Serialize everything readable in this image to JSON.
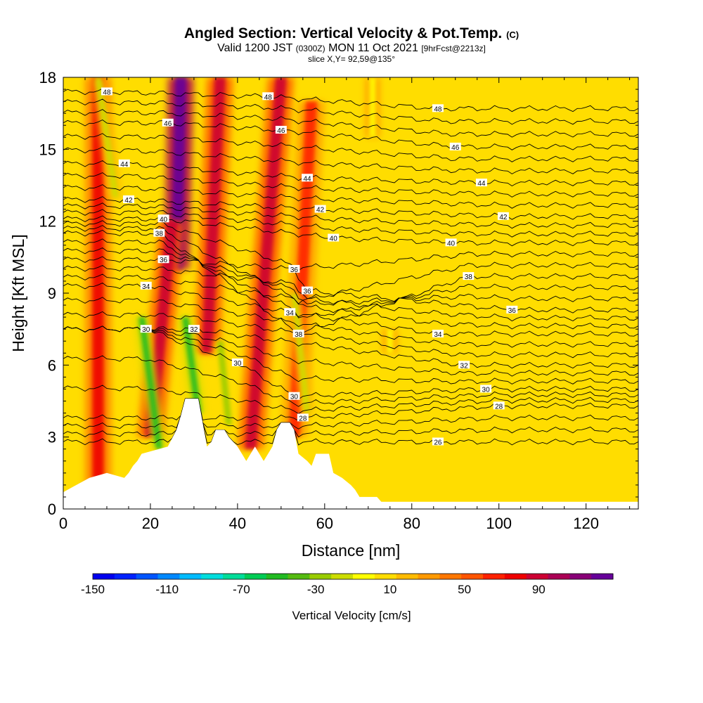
{
  "title": {
    "main": "Angled Section: Vertical Velocity & Pot.Temp.",
    "unit_note": "(C)",
    "valid_prefix": "Valid 1200 JST",
    "zulu": "(0300Z)",
    "valid_date": "MON 11 Oct 2021",
    "forecast": "[9hrFcst@2213z]",
    "slice": "slice X,Y= 92,59@135°"
  },
  "colors": {
    "background_field": "#ffdd00",
    "contour_line": "#000000",
    "terrain": "#ffffff"
  },
  "chart_data": {
    "type": "heatmap",
    "xlabel": "Distance [nm]",
    "ylabel": "Height [Kft MSL]",
    "xlim": [
      0,
      132
    ],
    "ylim": [
      0,
      18
    ],
    "x_ticks": [
      0,
      20,
      40,
      60,
      80,
      100,
      120
    ],
    "y_ticks": [
      0,
      3,
      6,
      9,
      12,
      15,
      18
    ],
    "colorbar": {
      "label": "Vertical Velocity [cm/s]",
      "range": [
        -150,
        130
      ],
      "step": 10,
      "tick_labels": [
        "-150",
        "-110",
        "-70",
        "-30",
        "10",
        "50",
        "90"
      ],
      "colors": [
        "#0000ee",
        "#0022ff",
        "#0055ff",
        "#0088ff",
        "#00bbff",
        "#00dddd",
        "#00dd99",
        "#00cc55",
        "#22bb22",
        "#55bb11",
        "#99cc00",
        "#ccdd00",
        "#ffff00",
        "#ffdd00",
        "#ffbb00",
        "#ff9900",
        "#ff7700",
        "#ff5500",
        "#ff2200",
        "#ee0000",
        "#cc0033",
        "#aa0055",
        "#880077",
        "#660099"
      ]
    },
    "potential_temperature_contours": [
      {
        "label": "26",
        "value": 26,
        "label_positions": [
          {
            "x": 86,
            "y": 2.8
          }
        ]
      },
      {
        "label": "28",
        "value": 28,
        "label_positions": [
          {
            "x": 55,
            "y": 3.8
          },
          {
            "x": 100,
            "y": 4.3
          }
        ]
      },
      {
        "label": "30",
        "value": 30,
        "label_positions": [
          {
            "x": 19,
            "y": 7.5
          },
          {
            "x": 40,
            "y": 6.1
          },
          {
            "x": 53,
            "y": 4.7
          },
          {
            "x": 97,
            "y": 5
          }
        ]
      },
      {
        "label": "32",
        "value": 32,
        "label_positions": [
          {
            "x": 30,
            "y": 7.5
          },
          {
            "x": 92,
            "y": 6
          }
        ]
      },
      {
        "label": "34",
        "value": 34,
        "label_positions": [
          {
            "x": 19,
            "y": 9.3
          },
          {
            "x": 52,
            "y": 8.2
          },
          {
            "x": 86,
            "y": 7.3
          }
        ]
      },
      {
        "label": "36",
        "value": 36,
        "label_positions": [
          {
            "x": 23,
            "y": 10.4
          },
          {
            "x": 53,
            "y": 10
          },
          {
            "x": 56,
            "y": 9.1
          },
          {
            "x": 103,
            "y": 8.3
          }
        ]
      },
      {
        "label": "38",
        "value": 38,
        "label_positions": [
          {
            "x": 22,
            "y": 11.5
          },
          {
            "x": 54,
            "y": 7.3
          },
          {
            "x": 93,
            "y": 9.7
          }
        ]
      },
      {
        "label": "40",
        "value": 40,
        "label_positions": [
          {
            "x": 23,
            "y": 12.1
          },
          {
            "x": 62,
            "y": 11.3
          },
          {
            "x": 89,
            "y": 11.1
          }
        ]
      },
      {
        "label": "42",
        "value": 42,
        "label_positions": [
          {
            "x": 15,
            "y": 12.9
          },
          {
            "x": 59,
            "y": 12.5
          },
          {
            "x": 101,
            "y": 12.2
          }
        ]
      },
      {
        "label": "44",
        "value": 44,
        "label_positions": [
          {
            "x": 14,
            "y": 14.4
          },
          {
            "x": 56,
            "y": 13.8
          },
          {
            "x": 96,
            "y": 13.6
          }
        ]
      },
      {
        "label": "46",
        "value": 46,
        "label_positions": [
          {
            "x": 24,
            "y": 16.1
          },
          {
            "x": 50,
            "y": 15.8
          },
          {
            "x": 90,
            "y": 15.1
          }
        ]
      },
      {
        "label": "48",
        "value": 48,
        "label_positions": [
          {
            "x": 10,
            "y": 17.4
          },
          {
            "x": 47,
            "y": 17.2
          },
          {
            "x": 86,
            "y": 16.7
          }
        ]
      }
    ],
    "vertical_velocity_features": [
      {
        "kind": "updraft",
        "x_bottom": 26,
        "x_top": 27,
        "y_bottom": 10,
        "y_top": 18,
        "max": 90
      },
      {
        "kind": "updraft",
        "x_bottom": 33,
        "x_top": 36,
        "y_bottom": 6.5,
        "y_top": 18,
        "max": 50
      },
      {
        "kind": "updraft",
        "x_bottom": 43,
        "x_top": 50,
        "y_bottom": 2.5,
        "y_top": 18,
        "max": 50
      },
      {
        "kind": "updraft",
        "x_bottom": 20,
        "x_top": 25,
        "y_bottom": 3,
        "y_top": 12,
        "max": 50
      },
      {
        "kind": "updraft",
        "x_bottom": 8,
        "x_top": 8,
        "y_bottom": 0.5,
        "y_top": 18,
        "max": 40
      },
      {
        "kind": "updraft",
        "x_bottom": 53,
        "x_top": 57,
        "y_bottom": 3,
        "y_top": 17,
        "max": 30
      },
      {
        "kind": "downdraft",
        "x_bottom": 22,
        "x_top": 18,
        "y_bottom": 2.5,
        "y_top": 8,
        "min": -70
      },
      {
        "kind": "downdraft",
        "x_bottom": 31,
        "x_top": 28,
        "y_bottom": 4,
        "y_top": 8,
        "min": -70
      },
      {
        "kind": "downdraft",
        "x_bottom": 38,
        "x_top": 36,
        "y_bottom": 3.5,
        "y_top": 7,
        "min": -50
      },
      {
        "kind": "downdraft",
        "x_bottom": 56,
        "x_top": 53,
        "y_bottom": 4,
        "y_top": 9,
        "min": -40
      },
      {
        "kind": "downdraft",
        "x_bottom": 12,
        "x_top": 8,
        "y_bottom": 13,
        "y_top": 18,
        "min": -40
      },
      {
        "kind": "downdraft",
        "x_bottom": 71,
        "x_top": 71,
        "y_bottom": 15.5,
        "y_top": 18,
        "min": -30
      },
      {
        "kind": "downdraft",
        "x_bottom": 75,
        "x_top": 75,
        "y_bottom": 6.5,
        "y_top": 7.5,
        "min": -30
      }
    ],
    "terrain_profile": [
      {
        "x": 0,
        "y": 0.7
      },
      {
        "x": 2,
        "y": 0.9
      },
      {
        "x": 4,
        "y": 1.1
      },
      {
        "x": 6,
        "y": 1.3
      },
      {
        "x": 10,
        "y": 1.5
      },
      {
        "x": 14,
        "y": 1.3
      },
      {
        "x": 15,
        "y": 1.5
      },
      {
        "x": 16,
        "y": 1.8
      },
      {
        "x": 17,
        "y": 2
      },
      {
        "x": 18,
        "y": 2.3
      },
      {
        "x": 24,
        "y": 2.6
      },
      {
        "x": 26,
        "y": 3.3
      },
      {
        "x": 27,
        "y": 3.9
      },
      {
        "x": 28,
        "y": 4.6
      },
      {
        "x": 31,
        "y": 4.6
      },
      {
        "x": 32,
        "y": 3.6
      },
      {
        "x": 33,
        "y": 2.6
      },
      {
        "x": 34,
        "y": 2.8
      },
      {
        "x": 35,
        "y": 3.3
      },
      {
        "x": 37,
        "y": 3.3
      },
      {
        "x": 38,
        "y": 3
      },
      {
        "x": 40,
        "y": 2.6
      },
      {
        "x": 41,
        "y": 2.3
      },
      {
        "x": 42,
        "y": 2
      },
      {
        "x": 43,
        "y": 2.3
      },
      {
        "x": 44,
        "y": 2.6
      },
      {
        "x": 45,
        "y": 2.3
      },
      {
        "x": 46,
        "y": 2
      },
      {
        "x": 47,
        "y": 2.3
      },
      {
        "x": 48,
        "y": 2.6
      },
      {
        "x": 49,
        "y": 3.3
      },
      {
        "x": 50,
        "y": 3.6
      },
      {
        "x": 52,
        "y": 3.6
      },
      {
        "x": 53,
        "y": 3.3
      },
      {
        "x": 54,
        "y": 2.3
      },
      {
        "x": 56,
        "y": 2
      },
      {
        "x": 57,
        "y": 1.8
      },
      {
        "x": 58,
        "y": 2.3
      },
      {
        "x": 61,
        "y": 2.3
      },
      {
        "x": 62,
        "y": 1.5
      },
      {
        "x": 64,
        "y": 1.3
      },
      {
        "x": 66,
        "y": 1
      },
      {
        "x": 67,
        "y": 0.8
      },
      {
        "x": 68,
        "y": 0.5
      },
      {
        "x": 72,
        "y": 0.5
      },
      {
        "x": 73,
        "y": 0.3
      },
      {
        "x": 132,
        "y": 0.3
      }
    ]
  }
}
